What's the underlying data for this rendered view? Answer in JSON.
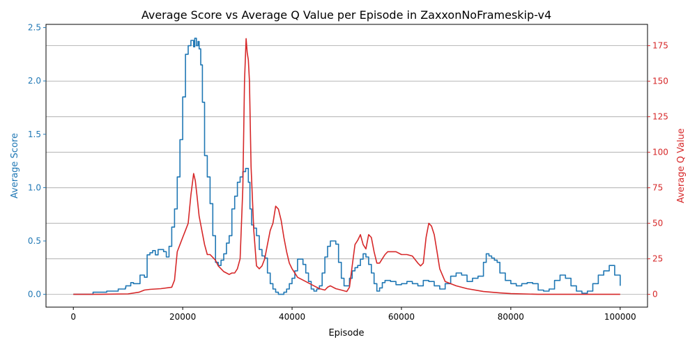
{
  "chart_data": {
    "type": "line",
    "title": "Average Score vs Average Q Value per Episode in ZaxxonNoFrameskip-v4",
    "xlabel": "Episode",
    "ylabel_left": "Average Score",
    "ylabel_right": "Average Q Value",
    "xlim": [
      -5000,
      105000
    ],
    "ylim_left": [
      -0.12,
      2.53
    ],
    "ylim_right": [
      -9,
      190
    ],
    "x_ticks": [
      0,
      20000,
      40000,
      60000,
      80000,
      100000
    ],
    "x_tick_labels": [
      "0",
      "20000",
      "40000",
      "60000",
      "80000",
      "100000"
    ],
    "y_left_ticks": [
      0.0,
      0.5,
      1.0,
      1.5,
      2.0,
      2.5
    ],
    "y_left_tick_labels": [
      "0.0",
      "0.5",
      "1.0",
      "1.5",
      "2.0",
      "2.5"
    ],
    "y_right_ticks": [
      0,
      25,
      50,
      75,
      100,
      125,
      150,
      175
    ],
    "y_right_tick_labels": [
      "0",
      "25",
      "50",
      "75",
      "100",
      "125",
      "150",
      "175"
    ],
    "grid": "horizontal, right axis",
    "colors": {
      "score": "#1f77b4",
      "q": "#d62728",
      "grid": "#b0b0b0"
    },
    "series": [
      {
        "axis": "left",
        "color": "#1f77b4",
        "x": [
          0,
          3500,
          3600,
          6000,
          6100,
          8000,
          8200,
          9500,
          9600,
          10500,
          11000,
          12000,
          12200,
          13000,
          13500,
          14000,
          14500,
          15000,
          15500,
          16000,
          16500,
          17000,
          17500,
          18000,
          18500,
          19000,
          19500,
          20000,
          20500,
          21000,
          21500,
          22000,
          22200,
          22500,
          22800,
          23000,
          23300,
          23600,
          24000,
          24500,
          25000,
          25500,
          26000,
          26500,
          27000,
          27500,
          28000,
          28500,
          29000,
          29500,
          30000,
          30500,
          31000,
          31500,
          32000,
          32300,
          32600,
          33000,
          33500,
          34000,
          34500,
          35000,
          35500,
          36000,
          36500,
          37000,
          37500,
          38000,
          38500,
          39000,
          39500,
          40000,
          40500,
          41000,
          41500,
          42000,
          42500,
          43000,
          43500,
          44000,
          44500,
          45000,
          45500,
          46000,
          46500,
          47000,
          47500,
          48000,
          48500,
          49000,
          49500,
          50000,
          50500,
          51000,
          51500,
          52000,
          52500,
          53000,
          53500,
          54000,
          54500,
          55000,
          55500,
          56000,
          56500,
          57000,
          58000,
          59000,
          60000,
          61000,
          62000,
          63000,
          64000,
          65000,
          66000,
          67000,
          68000,
          69000,
          70000,
          71000,
          72000,
          73000,
          74000,
          75000,
          75500,
          76000,
          76500,
          77000,
          77500,
          78000,
          79000,
          80000,
          81000,
          82000,
          83000,
          84000,
          85000,
          86000,
          87000,
          88000,
          89000,
          90000,
          91000,
          92000,
          93000,
          94000,
          95000,
          96000,
          97000,
          98000,
          99000,
          100000
        ],
        "y": [
          0.0,
          0.0,
          0.02,
          0.02,
          0.03,
          0.03,
          0.05,
          0.06,
          0.08,
          0.11,
          0.1,
          0.1,
          0.18,
          0.16,
          0.37,
          0.39,
          0.41,
          0.37,
          0.42,
          0.42,
          0.4,
          0.35,
          0.45,
          0.63,
          0.8,
          1.1,
          1.45,
          1.85,
          2.25,
          2.33,
          2.38,
          2.32,
          2.4,
          2.33,
          2.37,
          2.3,
          2.15,
          1.8,
          1.3,
          1.1,
          0.85,
          0.55,
          0.3,
          0.27,
          0.32,
          0.38,
          0.48,
          0.55,
          0.8,
          0.92,
          1.05,
          1.1,
          1.15,
          1.18,
          1.05,
          0.8,
          0.65,
          0.62,
          0.55,
          0.42,
          0.36,
          0.34,
          0.2,
          0.1,
          0.05,
          0.02,
          0.0,
          0.0,
          0.02,
          0.05,
          0.1,
          0.15,
          0.22,
          0.33,
          0.33,
          0.28,
          0.2,
          0.12,
          0.05,
          0.03,
          0.05,
          0.08,
          0.2,
          0.35,
          0.45,
          0.5,
          0.5,
          0.47,
          0.3,
          0.15,
          0.08,
          0.08,
          0.15,
          0.22,
          0.25,
          0.27,
          0.33,
          0.38,
          0.35,
          0.28,
          0.2,
          0.1,
          0.03,
          0.06,
          0.11,
          0.13,
          0.12,
          0.09,
          0.1,
          0.12,
          0.1,
          0.08,
          0.13,
          0.12,
          0.08,
          0.05,
          0.1,
          0.17,
          0.2,
          0.18,
          0.12,
          0.15,
          0.17,
          0.3,
          0.38,
          0.36,
          0.34,
          0.32,
          0.3,
          0.2,
          0.13,
          0.1,
          0.08,
          0.1,
          0.11,
          0.1,
          0.04,
          0.03,
          0.05,
          0.13,
          0.18,
          0.15,
          0.08,
          0.03,
          0.01,
          0.03,
          0.1,
          0.18,
          0.22,
          0.27,
          0.18,
          0.08
        ]
      },
      {
        "axis": "right",
        "color": "#d62728",
        "x": [
          0,
          5000,
          10000,
          12000,
          13000,
          14000,
          16000,
          18000,
          18500,
          19000,
          19500,
          20000,
          20500,
          21000,
          21500,
          22000,
          22300,
          22600,
          23000,
          23500,
          24000,
          24500,
          25000,
          25500,
          26000,
          26500,
          27000,
          27500,
          28000,
          28500,
          29000,
          29500,
          30000,
          30500,
          31000,
          31300,
          31600,
          31800,
          32000,
          32200,
          32500,
          33000,
          33500,
          34000,
          34500,
          35000,
          35500,
          36000,
          36500,
          37000,
          37500,
          38000,
          38500,
          39000,
          39500,
          40000,
          40500,
          41000,
          42000,
          43000,
          44000,
          45000,
          46000,
          46500,
          47000,
          48000,
          49000,
          50000,
          50500,
          51000,
          51500,
          52000,
          52500,
          53000,
          53500,
          54000,
          54500,
          55000,
          55500,
          56000,
          56500,
          57000,
          57500,
          58000,
          58500,
          59000,
          60000,
          61000,
          62000,
          63000,
          63500,
          64000,
          64500,
          65000,
          65500,
          66000,
          66500,
          67000,
          68000,
          70000,
          72000,
          75000,
          78000,
          80000,
          85000,
          90000,
          95000,
          100000
        ],
        "y": [
          0,
          0,
          0.3,
          1.5,
          3,
          3.5,
          4,
          5,
          10,
          30,
          35,
          40,
          45,
          50,
          70,
          85,
          80,
          70,
          55,
          45,
          35,
          28,
          28,
          26,
          24,
          20,
          18,
          16,
          15,
          14,
          15,
          15,
          18,
          25,
          75,
          150,
          180,
          170,
          165,
          150,
          90,
          45,
          20,
          18,
          20,
          25,
          35,
          45,
          50,
          62,
          60,
          52,
          40,
          30,
          22,
          18,
          15,
          12,
          10,
          8,
          6,
          4,
          3,
          5,
          6,
          4,
          3,
          2,
          5,
          20,
          35,
          38,
          42,
          35,
          32,
          42,
          40,
          30,
          22,
          22,
          25,
          28,
          30,
          30,
          30,
          30,
          28,
          28,
          27,
          22,
          20,
          22,
          40,
          50,
          48,
          42,
          30,
          18,
          9,
          6,
          4,
          2,
          1,
          0.5,
          0,
          0,
          0,
          0
        ]
      }
    ]
  }
}
